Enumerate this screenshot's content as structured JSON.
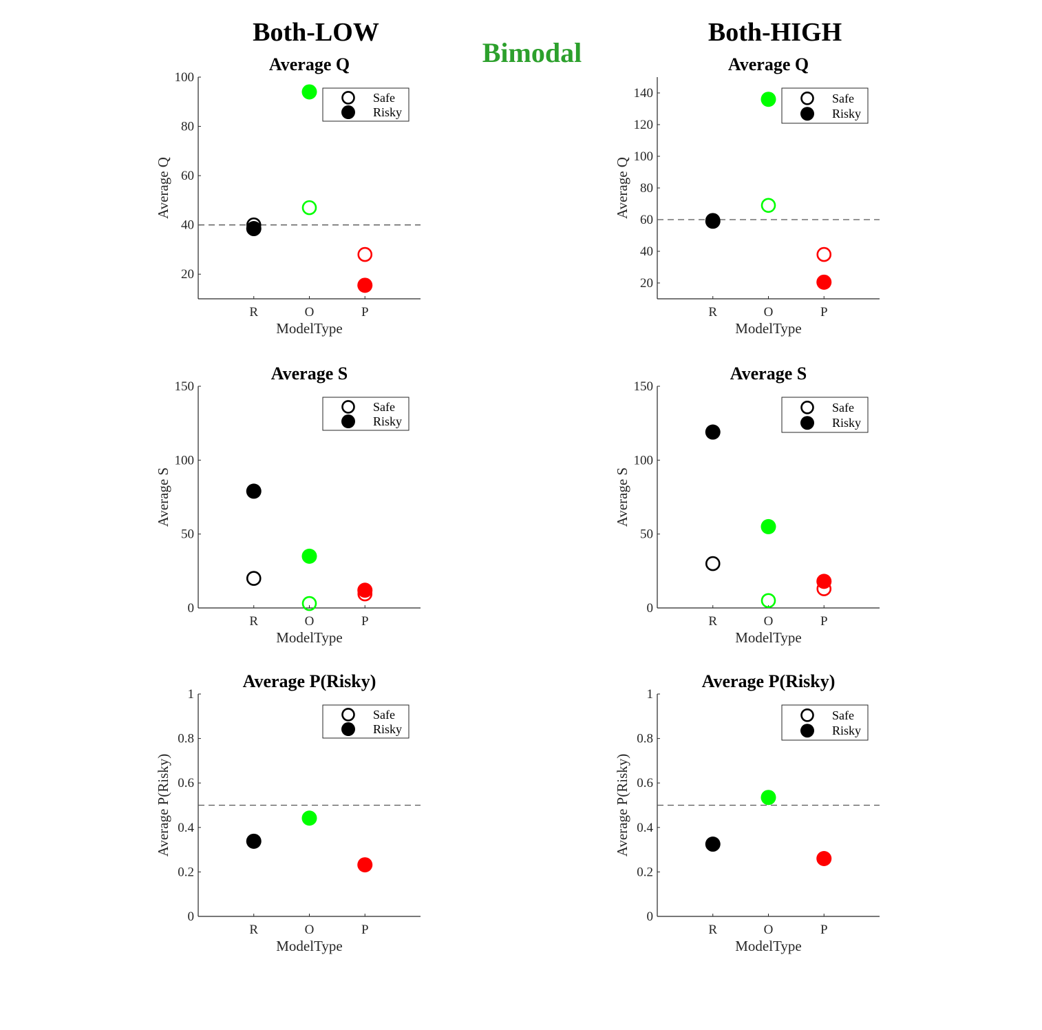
{
  "main_title": "Bimodal",
  "column_titles": [
    "Both-LOW",
    "Both-HIGH"
  ],
  "colors": {
    "R": "#000000",
    "O": "#00ff00",
    "P": "#ff0000",
    "title": "#2ca02c",
    "refline": "#555555"
  },
  "legend": {
    "safe": "Safe",
    "risky": "Risky"
  },
  "chart_data": [
    {
      "type": "scatter",
      "column": "Both-LOW",
      "title": "Average Q",
      "xlabel": "ModelType",
      "ylabel": "Average Q",
      "categories": [
        "R",
        "O",
        "P"
      ],
      "ylim": [
        10,
        100
      ],
      "yticks": [
        20,
        40,
        60,
        80,
        100
      ],
      "yticklabels": [
        "20",
        "40",
        "60",
        "80",
        "100"
      ],
      "refline": 40,
      "series": [
        {
          "name": "Safe",
          "filled": false,
          "values": [
            40,
            47,
            28
          ]
        },
        {
          "name": "Risky",
          "filled": true,
          "values": [
            38.5,
            94,
            15.5
          ]
        }
      ]
    },
    {
      "type": "scatter",
      "column": "Both-HIGH",
      "title": "Average Q",
      "xlabel": "ModelType",
      "ylabel": "Average Q",
      "categories": [
        "R",
        "O",
        "P"
      ],
      "ylim": [
        10,
        150
      ],
      "yticks": [
        20,
        40,
        60,
        80,
        100,
        120,
        140
      ],
      "yticklabels": [
        "20",
        "40",
        "60",
        "80",
        "100",
        "120",
        "140"
      ],
      "refline": 60,
      "series": [
        {
          "name": "Safe",
          "filled": false,
          "values": [
            59.5,
            69,
            38
          ]
        },
        {
          "name": "Risky",
          "filled": true,
          "values": [
            59,
            136,
            20.5
          ]
        }
      ]
    },
    {
      "type": "scatter",
      "column": "Both-LOW",
      "title": "Average S",
      "xlabel": "ModelType",
      "ylabel": "Average S",
      "categories": [
        "R",
        "O",
        "P"
      ],
      "ylim": [
        0,
        150
      ],
      "yticks": [
        0,
        50,
        100,
        150
      ],
      "yticklabels": [
        "0",
        "50",
        "100",
        "150"
      ],
      "refline": null,
      "series": [
        {
          "name": "Safe",
          "filled": false,
          "values": [
            20,
            3,
            9.5
          ]
        },
        {
          "name": "Risky",
          "filled": true,
          "values": [
            79,
            35,
            12
          ]
        }
      ]
    },
    {
      "type": "scatter",
      "column": "Both-HIGH",
      "title": "Average S",
      "xlabel": "ModelType",
      "ylabel": "Average S",
      "categories": [
        "R",
        "O",
        "P"
      ],
      "ylim": [
        0,
        150
      ],
      "yticks": [
        0,
        50,
        100,
        150
      ],
      "yticklabels": [
        "0",
        "50",
        "100",
        "150"
      ],
      "refline": null,
      "series": [
        {
          "name": "Safe",
          "filled": false,
          "values": [
            30,
            5,
            13
          ]
        },
        {
          "name": "Risky",
          "filled": true,
          "values": [
            119,
            55,
            18
          ]
        }
      ]
    },
    {
      "type": "scatter",
      "column": "Both-LOW",
      "title": "Average P(Risky)",
      "xlabel": "ModelType",
      "ylabel": "Average P(Risky)",
      "categories": [
        "R",
        "O",
        "P"
      ],
      "ylim": [
        0,
        1
      ],
      "yticks": [
        0,
        0.2,
        0.4,
        0.6,
        0.8,
        1
      ],
      "yticklabels": [
        "0",
        "0.2",
        "0.4",
        "0.6",
        "0.8",
        "1"
      ],
      "refline": 0.5,
      "series": [
        {
          "name": "Risky",
          "filled": true,
          "values": [
            0.338,
            0.442,
            0.232
          ]
        }
      ]
    },
    {
      "type": "scatter",
      "column": "Both-HIGH",
      "title": "Average P(Risky)",
      "xlabel": "ModelType",
      "ylabel": "Average P(Risky)",
      "categories": [
        "R",
        "O",
        "P"
      ],
      "ylim": [
        0,
        1
      ],
      "yticks": [
        0,
        0.2,
        0.4,
        0.6,
        0.8,
        1
      ],
      "yticklabels": [
        "0",
        "0.2",
        "0.4",
        "0.6",
        "0.8",
        "1"
      ],
      "refline": 0.5,
      "series": [
        {
          "name": "Risky",
          "filled": true,
          "values": [
            0.325,
            0.535,
            0.26
          ]
        }
      ]
    }
  ]
}
